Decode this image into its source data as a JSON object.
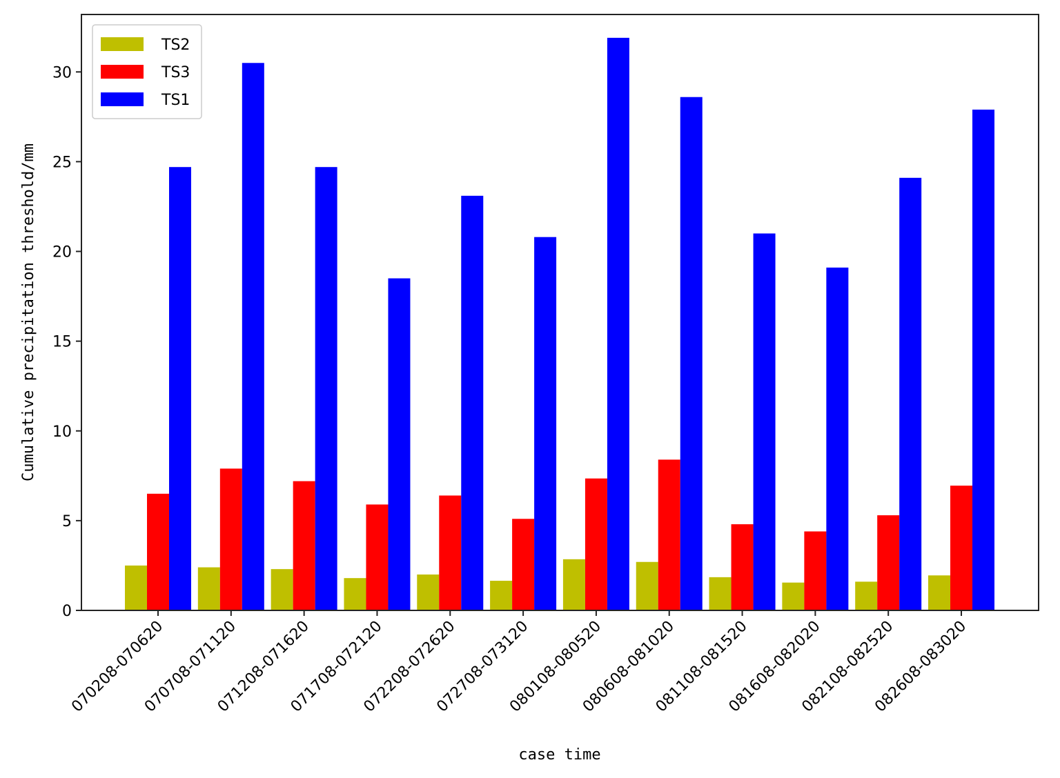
{
  "chart_data": {
    "type": "bar",
    "title": "",
    "xlabel": "case time",
    "ylabel": "Cumulative precipitation threshold/mm",
    "ylim": [
      0,
      33.2
    ],
    "yticks": [
      0,
      5,
      10,
      15,
      20,
      25,
      30
    ],
    "grid": false,
    "legend_position": "top-left",
    "categories": [
      "070208-070620",
      "070708-071120",
      "071208-071620",
      "071708-072120",
      "072208-072620",
      "072708-073120",
      "080108-080520",
      "080608-081020",
      "081108-081520",
      "081608-082020",
      "082108-082520",
      "082608-083020"
    ],
    "series": [
      {
        "name": "TS2",
        "color": "#bfbf00",
        "values": [
          2.5,
          2.4,
          2.3,
          1.8,
          2.0,
          1.65,
          2.85,
          2.7,
          1.85,
          1.55,
          1.6,
          1.95
        ]
      },
      {
        "name": "TS3",
        "color": "#ff0000",
        "values": [
          6.5,
          7.9,
          7.2,
          5.9,
          6.4,
          5.1,
          7.35,
          8.4,
          4.8,
          4.4,
          5.3,
          6.95
        ]
      },
      {
        "name": "TS1",
        "color": "#0000ff",
        "values": [
          24.7,
          30.5,
          24.7,
          18.5,
          23.1,
          20.8,
          31.9,
          28.6,
          21.0,
          19.1,
          24.1,
          27.9
        ]
      }
    ]
  }
}
